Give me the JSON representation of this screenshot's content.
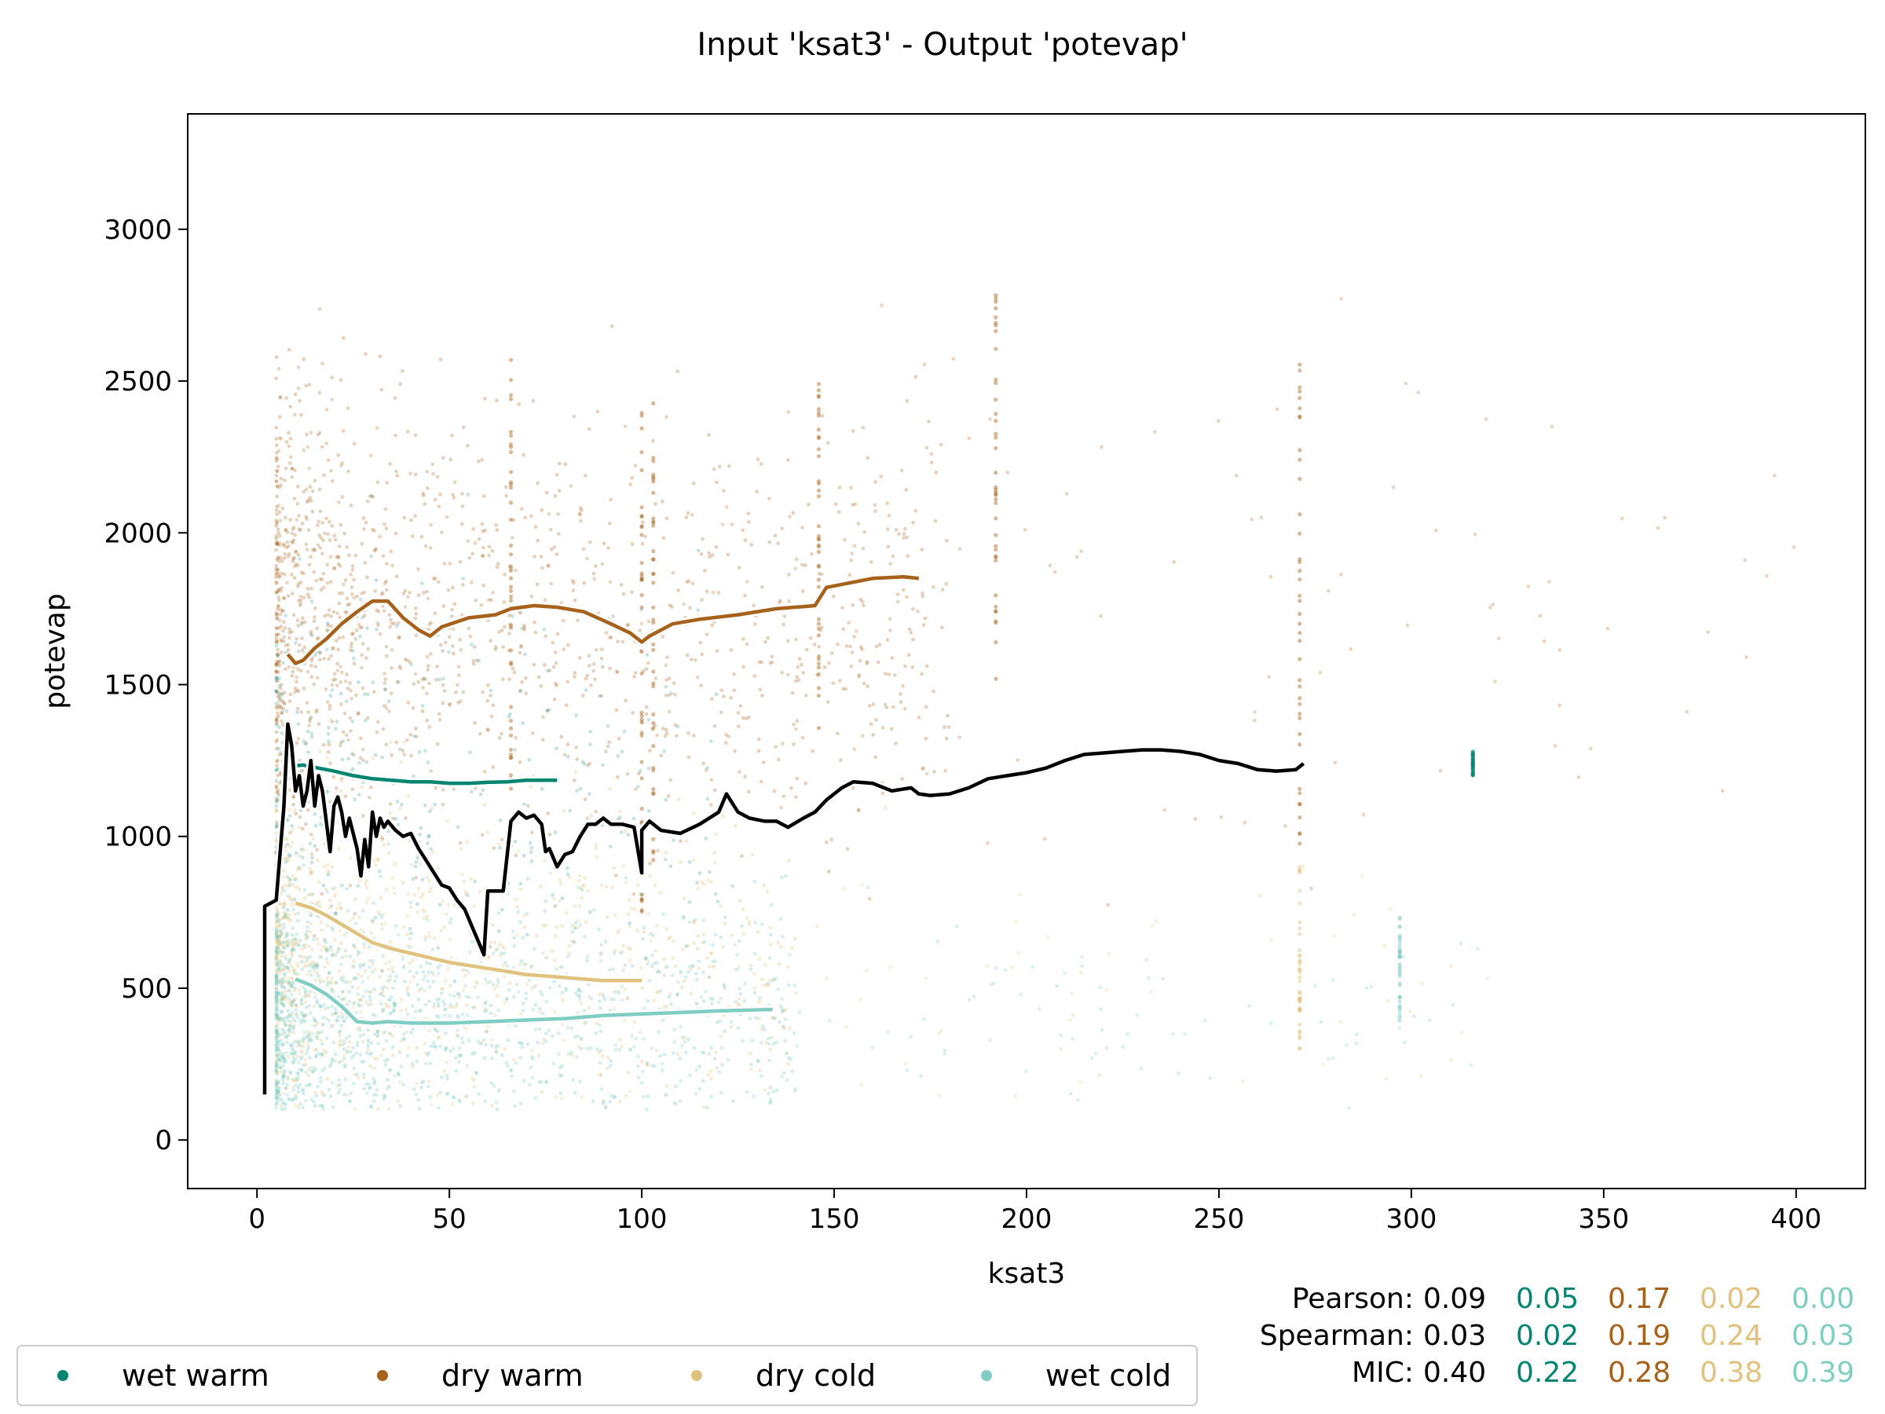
{
  "chart_data": {
    "type": "scatter",
    "title": "Input 'ksat3' - Output 'potevap'",
    "xlabel": "ksat3",
    "ylabel": "potevap",
    "xlim": [
      -18,
      418
    ],
    "ylim": [
      -160,
      3380
    ],
    "xticks": [
      0,
      50,
      100,
      150,
      200,
      250,
      300,
      350,
      400
    ],
    "yticks": [
      0,
      500,
      1000,
      1500,
      2000,
      2500,
      3000
    ],
    "grid": false,
    "legend_position": "bottom-left, below plot",
    "series": [
      {
        "name": "wet warm",
        "color": "#018571",
        "trend": [
          [
            8,
            1230
          ],
          [
            12,
            1235
          ],
          [
            16,
            1225
          ],
          [
            20,
            1215
          ],
          [
            25,
            1200
          ],
          [
            30,
            1190
          ],
          [
            35,
            1185
          ],
          [
            40,
            1180
          ],
          [
            45,
            1180
          ],
          [
            50,
            1175
          ],
          [
            55,
            1175
          ],
          [
            60,
            1178
          ],
          [
            65,
            1180
          ],
          [
            70,
            1185
          ],
          [
            75,
            1185
          ],
          [
            78,
            1185
          ]
        ]
      },
      {
        "name": "dry warm",
        "color": "#a6611a",
        "trend": [
          [
            8,
            1600
          ],
          [
            10,
            1570
          ],
          [
            12,
            1580
          ],
          [
            15,
            1620
          ],
          [
            18,
            1650
          ],
          [
            22,
            1700
          ],
          [
            26,
            1740
          ],
          [
            30,
            1775
          ],
          [
            34,
            1775
          ],
          [
            38,
            1720
          ],
          [
            42,
            1680
          ],
          [
            45,
            1660
          ],
          [
            48,
            1690
          ],
          [
            55,
            1720
          ],
          [
            62,
            1730
          ],
          [
            66,
            1750
          ],
          [
            72,
            1760
          ],
          [
            78,
            1755
          ],
          [
            85,
            1740
          ],
          [
            92,
            1700
          ],
          [
            97,
            1670
          ],
          [
            100,
            1640
          ],
          [
            102,
            1660
          ],
          [
            108,
            1700
          ],
          [
            115,
            1715
          ],
          [
            125,
            1730
          ],
          [
            135,
            1750
          ],
          [
            145,
            1760
          ],
          [
            148,
            1820
          ],
          [
            160,
            1850
          ],
          [
            168,
            1855
          ],
          [
            172,
            1850
          ]
        ]
      },
      {
        "name": "dry cold",
        "color": "#dfc27d",
        "trend": [
          [
            10,
            780
          ],
          [
            14,
            765
          ],
          [
            18,
            740
          ],
          [
            22,
            710
          ],
          [
            26,
            680
          ],
          [
            30,
            650
          ],
          [
            35,
            630
          ],
          [
            40,
            615
          ],
          [
            45,
            600
          ],
          [
            50,
            585
          ],
          [
            55,
            575
          ],
          [
            60,
            565
          ],
          [
            65,
            555
          ],
          [
            70,
            545
          ],
          [
            75,
            540
          ],
          [
            80,
            535
          ],
          [
            85,
            530
          ],
          [
            90,
            525
          ],
          [
            95,
            525
          ],
          [
            100,
            525
          ]
        ]
      },
      {
        "name": "wet cold",
        "color": "#80cdc1",
        "trend": [
          [
            10,
            530
          ],
          [
            14,
            510
          ],
          [
            18,
            480
          ],
          [
            22,
            440
          ],
          [
            26,
            390
          ],
          [
            30,
            385
          ],
          [
            34,
            390
          ],
          [
            40,
            385
          ],
          [
            50,
            385
          ],
          [
            60,
            390
          ],
          [
            70,
            395
          ],
          [
            80,
            400
          ],
          [
            90,
            410
          ],
          [
            100,
            415
          ],
          [
            110,
            420
          ],
          [
            120,
            425
          ],
          [
            134,
            430
          ]
        ]
      }
    ],
    "overall_trend": {
      "color": "#000000",
      "points": [
        [
          2,
          150
        ],
        [
          2,
          770
        ],
        [
          5,
          790
        ],
        [
          7,
          1100
        ],
        [
          8,
          1370
        ],
        [
          9,
          1300
        ],
        [
          10,
          1150
        ],
        [
          11,
          1200
        ],
        [
          12,
          1100
        ],
        [
          13,
          1150
        ],
        [
          14,
          1250
        ],
        [
          15,
          1100
        ],
        [
          16,
          1200
        ],
        [
          17,
          1150
        ],
        [
          18,
          1050
        ],
        [
          19,
          950
        ],
        [
          20,
          1100
        ],
        [
          21,
          1130
        ],
        [
          22,
          1080
        ],
        [
          23,
          1000
        ],
        [
          24,
          1060
        ],
        [
          25,
          1010
        ],
        [
          26,
          960
        ],
        [
          27,
          870
        ],
        [
          28,
          990
        ],
        [
          29,
          900
        ],
        [
          30,
          1080
        ],
        [
          31,
          1000
        ],
        [
          32,
          1060
        ],
        [
          33,
          1030
        ],
        [
          34,
          1050
        ],
        [
          36,
          1020
        ],
        [
          38,
          1000
        ],
        [
          40,
          1010
        ],
        [
          42,
          960
        ],
        [
          44,
          920
        ],
        [
          46,
          880
        ],
        [
          48,
          840
        ],
        [
          50,
          830
        ],
        [
          52,
          790
        ],
        [
          54,
          760
        ],
        [
          56,
          700
        ],
        [
          58,
          640
        ],
        [
          59,
          610
        ],
        [
          60,
          820
        ],
        [
          62,
          820
        ],
        [
          64,
          820
        ],
        [
          66,
          1050
        ],
        [
          68,
          1080
        ],
        [
          70,
          1060
        ],
        [
          72,
          1070
        ],
        [
          74,
          1040
        ],
        [
          75,
          950
        ],
        [
          76,
          960
        ],
        [
          78,
          900
        ],
        [
          80,
          940
        ],
        [
          82,
          950
        ],
        [
          84,
          1000
        ],
        [
          86,
          1040
        ],
        [
          88,
          1040
        ],
        [
          90,
          1060
        ],
        [
          92,
          1040
        ],
        [
          95,
          1040
        ],
        [
          98,
          1030
        ],
        [
          100,
          880
        ],
        [
          100,
          1020
        ],
        [
          102,
          1050
        ],
        [
          105,
          1020
        ],
        [
          110,
          1010
        ],
        [
          115,
          1040
        ],
        [
          120,
          1080
        ],
        [
          122,
          1140
        ],
        [
          125,
          1080
        ],
        [
          128,
          1060
        ],
        [
          132,
          1050
        ],
        [
          135,
          1050
        ],
        [
          138,
          1030
        ],
        [
          142,
          1060
        ],
        [
          145,
          1080
        ],
        [
          148,
          1120
        ],
        [
          152,
          1160
        ],
        [
          155,
          1180
        ],
        [
          160,
          1175
        ],
        [
          165,
          1150
        ],
        [
          170,
          1160
        ],
        [
          172,
          1140
        ],
        [
          175,
          1135
        ],
        [
          180,
          1140
        ],
        [
          185,
          1160
        ],
        [
          190,
          1190
        ],
        [
          195,
          1200
        ],
        [
          200,
          1210
        ],
        [
          205,
          1225
        ],
        [
          210,
          1250
        ],
        [
          215,
          1270
        ],
        [
          220,
          1275
        ],
        [
          225,
          1280
        ],
        [
          230,
          1285
        ],
        [
          235,
          1285
        ],
        [
          240,
          1280
        ],
        [
          245,
          1270
        ],
        [
          250,
          1250
        ],
        [
          255,
          1240
        ],
        [
          260,
          1220
        ],
        [
          265,
          1215
        ],
        [
          270,
          1220
        ],
        [
          272,
          1240
        ]
      ]
    },
    "stats": {
      "rows": [
        {
          "label": "Pearson:",
          "overall": "0.09",
          "values": [
            "0.05",
            "0.17",
            "0.02",
            "0.00"
          ]
        },
        {
          "label": "Spearman:",
          "overall": "0.03",
          "values": [
            "0.02",
            "0.19",
            "0.24",
            "0.03"
          ]
        },
        {
          "label": "MIC:",
          "overall": "0.40",
          "values": [
            "0.22",
            "0.28",
            "0.38",
            "0.39"
          ]
        }
      ]
    }
  }
}
